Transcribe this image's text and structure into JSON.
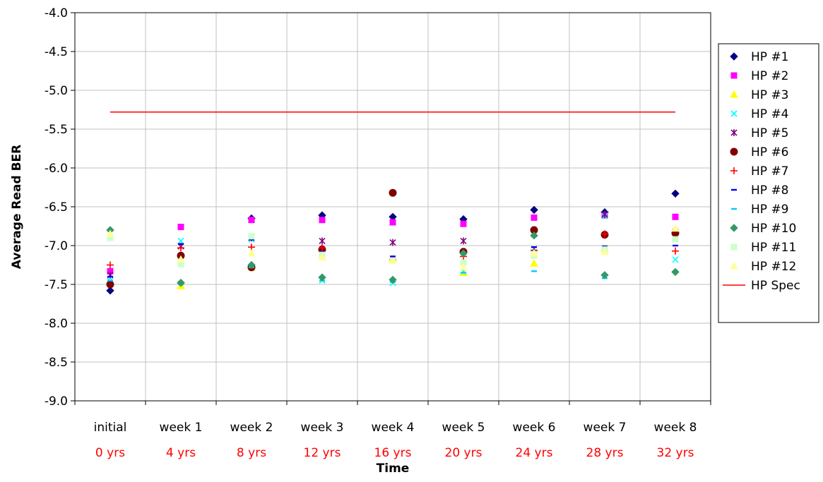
{
  "chart_data": {
    "type": "scatter",
    "title": "",
    "xlabel": "Time",
    "ylabel": "Average Read BER",
    "ylim": [
      -9.0,
      -4.0
    ],
    "yticks": [
      "-4.0",
      "-4.5",
      "-5.0",
      "-5.5",
      "-6.0",
      "-6.5",
      "-7.0",
      "-7.5",
      "-8.0",
      "-8.5",
      "-9.0"
    ],
    "categories": [
      "initial",
      "week 1",
      "week 2",
      "week 3",
      "week 4",
      "week 5",
      "week 6",
      "week 7",
      "week 8"
    ],
    "categories_secondary": [
      "0 yrs",
      "4 yrs",
      "8 yrs",
      "12 yrs",
      "16 yrs",
      "20 yrs",
      "24 yrs",
      "28 yrs",
      "32 yrs"
    ],
    "secondary_label_color": "#ff0000",
    "grid": true,
    "legend_position": "right",
    "series": [
      {
        "name": "HP #1",
        "marker": "diamond",
        "color": "#000080",
        "values": [
          -7.58,
          -7.48,
          -6.65,
          -6.61,
          -6.63,
          -6.66,
          -6.54,
          -6.57,
          -6.33
        ]
      },
      {
        "name": "HP #2",
        "marker": "square",
        "color": "#ff00ff",
        "values": [
          -7.33,
          -6.76,
          -6.67,
          -6.67,
          -6.7,
          -6.72,
          -6.64,
          -6.61,
          -6.63
        ]
      },
      {
        "name": "HP #3",
        "marker": "triangle",
        "color": "#ffff00",
        "values": [
          -6.85,
          -7.52,
          -7.28,
          -7.15,
          -7.17,
          -7.35,
          -7.23,
          -7.04,
          -6.78
        ]
      },
      {
        "name": "HP #4",
        "marker": "x",
        "color": "#00ffff",
        "values": [
          -7.45,
          -6.94,
          -6.92,
          -7.45,
          -7.48,
          -7.33,
          -7.04,
          -6.62,
          -7.18
        ]
      },
      {
        "name": "HP #5",
        "marker": "star",
        "color": "#800080",
        "values": [
          -7.38,
          -7.01,
          -6.9,
          -6.94,
          -6.96,
          -6.94,
          -6.85,
          -6.6,
          -6.82
        ]
      },
      {
        "name": "HP #6",
        "marker": "circle",
        "color": "#800000",
        "values": [
          -7.5,
          -7.13,
          -7.28,
          -7.05,
          -6.32,
          -7.08,
          -6.8,
          -6.86,
          -6.84
        ]
      },
      {
        "name": "HP #7",
        "marker": "plus",
        "color": "#ff0000",
        "values": [
          -7.25,
          -7.03,
          -7.02,
          -7.03,
          -7.18,
          -7.14,
          -7.06,
          -6.85,
          -7.07
        ]
      },
      {
        "name": "HP #8",
        "marker": "dash",
        "color": "#0000ff",
        "values": [
          -7.4,
          -6.98,
          -6.92,
          -7.08,
          -7.14,
          -7.1,
          -7.02,
          -7.01,
          -7.0
        ]
      },
      {
        "name": "HP #9",
        "marker": "dash",
        "color": "#00ccff",
        "values": [
          -7.45,
          -7.5,
          -7.28,
          -7.45,
          -7.47,
          -7.35,
          -7.33,
          -7.42,
          -7.33
        ]
      },
      {
        "name": "HP #10",
        "marker": "diamond",
        "color": "#339966",
        "values": [
          -6.8,
          -7.48,
          -7.25,
          -7.41,
          -7.44,
          -7.1,
          -6.87,
          -7.38,
          -7.34
        ]
      },
      {
        "name": "HP #11",
        "marker": "square",
        "color": "#ccffcc",
        "values": [
          -6.9,
          -7.24,
          -6.88,
          -7.12,
          -7.2,
          -7.22,
          -7.13,
          -7.05,
          -6.92
        ]
      },
      {
        "name": "HP #12",
        "marker": "triangle",
        "color": "#ffff99",
        "values": [
          -6.85,
          -7.18,
          -7.1,
          -7.15,
          -7.2,
          -7.28,
          -7.1,
          -7.08,
          -6.78
        ]
      }
    ],
    "lines": [
      {
        "name": "HP Spec",
        "color": "#ff0000",
        "y": -5.28
      }
    ]
  }
}
